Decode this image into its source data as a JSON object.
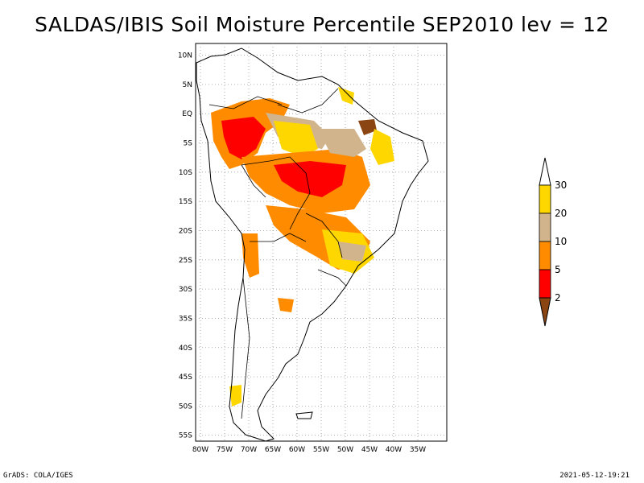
{
  "title": "SALDAS/IBIS Soil Moisture Percentile SEP2010 lev = 12",
  "footer": {
    "left": "GrADS: COLA/IGES",
    "right": "2021-05-12-19:21"
  },
  "map": {
    "projection": "lat-lon",
    "grid": true,
    "lon_range": [
      -81,
      -29
    ],
    "lat_range": [
      -56,
      12
    ],
    "lon_ticks": [
      "80W",
      "75W",
      "70W",
      "65W",
      "60W",
      "55W",
      "50W",
      "45W",
      "40W",
      "35W"
    ],
    "lat_ticks": [
      "10N",
      "5N",
      "EQ",
      "5S",
      "10S",
      "15S",
      "20S",
      "25S",
      "30S",
      "35S",
      "40S",
      "45S",
      "50S",
      "55S"
    ]
  },
  "legend": {
    "placement": "right",
    "labels": [
      "30",
      "20",
      "10",
      "5",
      "2"
    ],
    "colors": {
      "above_30": "#ffffff",
      "20_30": "#ffd700",
      "10_20": "#d2b48c",
      "5_10": "#ff8c00",
      "2_5": "#ff0000",
      "below_2": "#8b4513"
    }
  }
}
